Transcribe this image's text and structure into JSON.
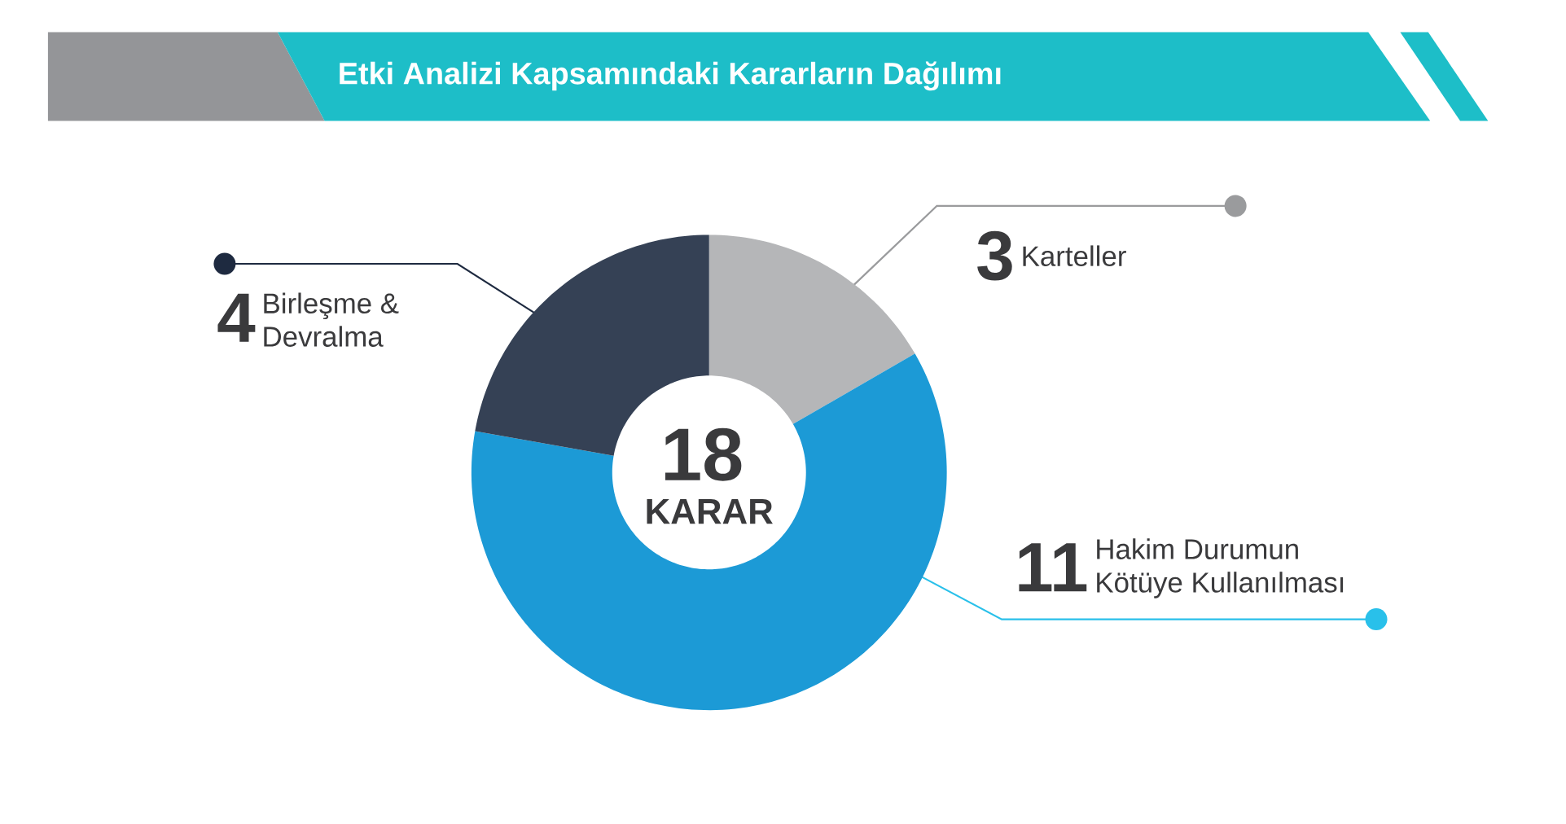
{
  "chart_data": {
    "type": "donut",
    "title": "Etki Analizi Kapsamındaki Kararların Dağılımı",
    "categories": [
      "Karteller",
      "Hakim Durumun Kötüye Kullanılması",
      "Birleşme & Devralma"
    ],
    "values": [
      3,
      11,
      4
    ],
    "colors": [
      "#b5b6b8",
      "#1c9ad6",
      "#354155"
    ],
    "data_labels": true,
    "annotations": [
      "18",
      "KARAR"
    ]
  }
}
